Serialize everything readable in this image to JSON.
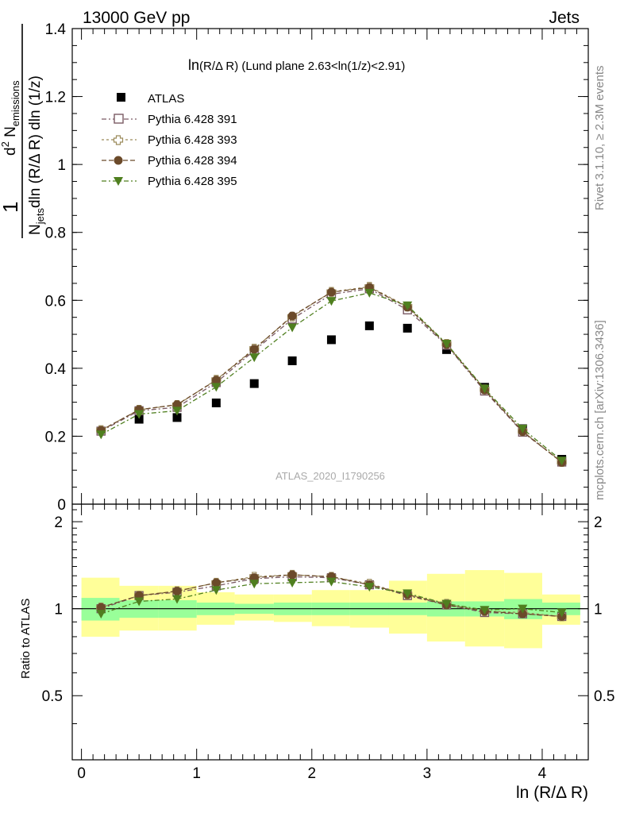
{
  "header": {
    "left": "13000 GeV pp",
    "right": "Jets"
  },
  "side": {
    "rivet": "Rivet 3.1.10, ≥ 2.3M events",
    "mcplots": "mcplots.cern.ch [arXiv:1306.3436]"
  },
  "main_panel": {
    "title": "ln(R/Δ R) (Lund plane 2.63<ln(1/z)<2.91)",
    "ylabel": "1/N_jets dln (R/Δ R) dln (1/z) d² N_emissions",
    "ylim": [
      0,
      1.4
    ],
    "yticks": [
      "0",
      "0.2",
      "0.4",
      "0.6",
      "0.8",
      "1",
      "1.2",
      "1.4"
    ],
    "watermark": "ATLAS_2020_I1790256"
  },
  "ratio_panel": {
    "ylabel": "Ratio to ATLAS",
    "ylim": [
      0.3,
      2.3
    ],
    "yticks_left": [
      "0.5",
      "1",
      "2"
    ],
    "yticks_right": [
      "0.5",
      "1",
      "2"
    ]
  },
  "xaxis": {
    "xlabel": "ln (R/Δ R)",
    "xlim": [
      -0.08,
      4.4
    ],
    "xticks": [
      "0",
      "1",
      "2",
      "3",
      "4"
    ]
  },
  "legend": {
    "atlas": "ATLAS",
    "p391": "Pythia 6.428 391",
    "p393": "Pythia 6.428 393",
    "p394": "Pythia 6.428 394",
    "p395": "Pythia 6.428 395"
  },
  "chart_data": {
    "type": "scatter",
    "x": [
      0.17,
      0.5,
      0.83,
      1.17,
      1.5,
      1.83,
      2.17,
      2.5,
      2.83,
      3.17,
      3.5,
      3.83,
      4.17
    ],
    "bin_edges": [
      0,
      0.33,
      0.67,
      1.0,
      1.33,
      1.67,
      2.0,
      2.33,
      2.67,
      3.0,
      3.33,
      3.67,
      4.0,
      4.33
    ],
    "series": [
      {
        "name": "ATLAS",
        "color": "#000000",
        "marker": "square",
        "values": [
          0.215,
          0.25,
          0.255,
          0.298,
          0.355,
          0.422,
          0.484,
          0.525,
          0.518,
          0.455,
          0.344,
          0.222,
          0.132
        ]
      },
      {
        "name": "Pythia 6.428 391",
        "color": "#7a5a64",
        "marker": "open-square",
        "dash": "6,3,2,3",
        "values": [
          0.215,
          0.275,
          0.285,
          0.358,
          0.452,
          0.545,
          0.618,
          0.634,
          0.572,
          0.468,
          0.333,
          0.212,
          0.124
        ]
      },
      {
        "name": "Pythia 6.428 393",
        "color": "#9b8a5a",
        "marker": "open-plus",
        "dash": "3,3",
        "values": [
          0.218,
          0.278,
          0.292,
          0.366,
          0.458,
          0.552,
          0.625,
          0.64,
          0.582,
          0.472,
          0.338,
          0.215,
          0.124
        ]
      },
      {
        "name": "Pythia 6.428 394",
        "color": "#6b4a2a",
        "marker": "circle",
        "dash": "6,3",
        "values": [
          0.217,
          0.278,
          0.293,
          0.365,
          0.456,
          0.554,
          0.624,
          0.638,
          0.58,
          0.47,
          0.336,
          0.214,
          0.123
        ]
      },
      {
        "name": "Pythia 6.428 395",
        "color": "#4f7f1f",
        "marker": "triangle-down",
        "dash": "6,3,2,3",
        "values": [
          0.205,
          0.265,
          0.275,
          0.345,
          0.432,
          0.52,
          0.598,
          0.622,
          0.585,
          0.472,
          0.34,
          0.222,
          0.128
        ]
      }
    ],
    "ratio_series": [
      {
        "name": "Pythia 6.428 391",
        "values": [
          1.0,
          1.11,
          1.14,
          1.2,
          1.27,
          1.29,
          1.28,
          1.21,
          1.11,
          1.03,
          0.97,
          0.96,
          0.94
        ]
      },
      {
        "name": "Pythia 6.428 393",
        "values": [
          1.01,
          1.11,
          1.15,
          1.23,
          1.29,
          1.31,
          1.29,
          1.22,
          1.12,
          1.04,
          0.98,
          0.97,
          0.94
        ]
      },
      {
        "name": "Pythia 6.428 394",
        "values": [
          1.01,
          1.11,
          1.15,
          1.23,
          1.28,
          1.31,
          1.29,
          1.21,
          1.12,
          1.03,
          0.98,
          0.96,
          0.94
        ]
      },
      {
        "name": "Pythia 6.428 395",
        "values": [
          0.96,
          1.06,
          1.08,
          1.16,
          1.22,
          1.23,
          1.24,
          1.19,
          1.13,
          1.04,
          0.99,
          1.0,
          0.97
        ]
      }
    ],
    "ratio_band_inner": [
      [
        0.91,
        1.09
      ],
      [
        0.93,
        1.07
      ],
      [
        0.93,
        1.07
      ],
      [
        0.95,
        1.05
      ],
      [
        0.96,
        1.04
      ],
      [
        0.95,
        1.05
      ],
      [
        0.95,
        1.05
      ],
      [
        0.95,
        1.05
      ],
      [
        0.95,
        1.05
      ],
      [
        0.94,
        1.06
      ],
      [
        0.94,
        1.06
      ],
      [
        0.92,
        1.08
      ],
      [
        0.95,
        1.05
      ]
    ],
    "ratio_band_outer": [
      [
        0.8,
        1.28
      ],
      [
        0.84,
        1.2
      ],
      [
        0.84,
        1.2
      ],
      [
        0.88,
        1.14
      ],
      [
        0.91,
        1.12
      ],
      [
        0.9,
        1.12
      ],
      [
        0.87,
        1.16
      ],
      [
        0.86,
        1.16
      ],
      [
        0.82,
        1.25
      ],
      [
        0.77,
        1.32
      ],
      [
        0.74,
        1.36
      ],
      [
        0.73,
        1.33
      ],
      [
        0.88,
        1.12
      ]
    ],
    "xlabel": "ln (R/Δ R)"
  }
}
